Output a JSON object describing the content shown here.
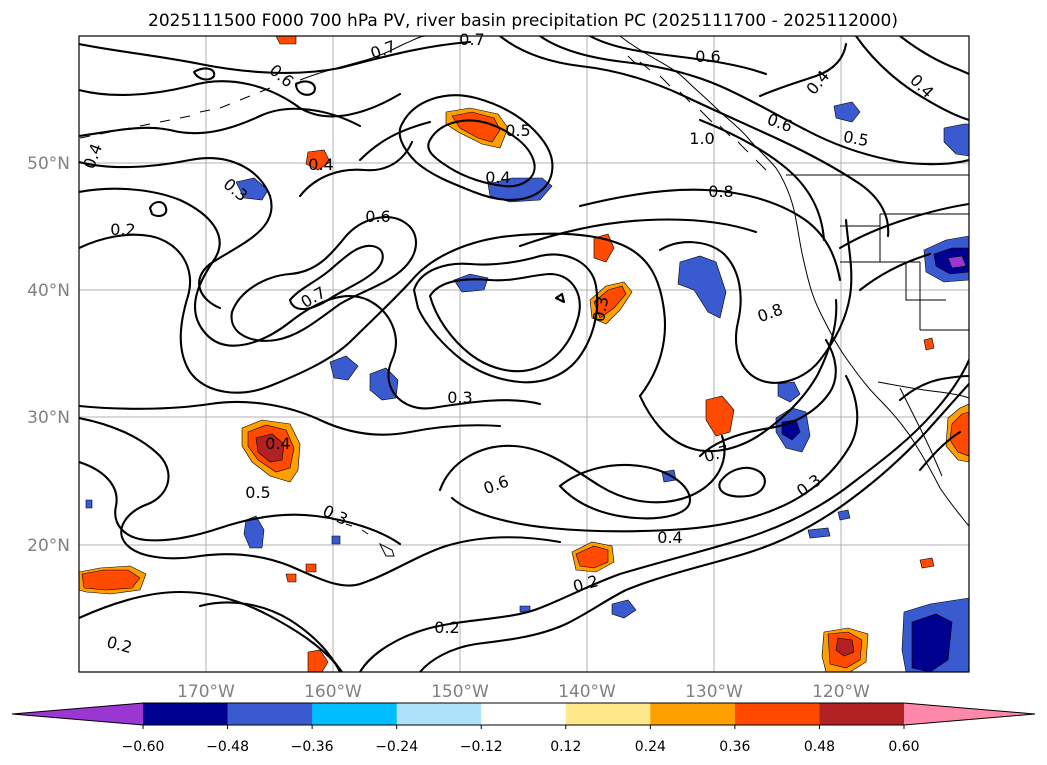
{
  "title": "2025111500 F000 700 hPa PV, river basin precipitation PC (2025111700 - 2025112000)",
  "map": {
    "lon_labels": [
      "170°W",
      "160°W",
      "150°W",
      "140°W",
      "130°W",
      "120°W"
    ],
    "lat_labels": [
      "50°N",
      "40°N",
      "30°N",
      "20°N"
    ],
    "contour_labels": [
      "0.7",
      "0.7",
      "0.6",
      "0.6",
      "0.4",
      "0.4",
      "0.5",
      "0.6",
      "0.5",
      "1.0",
      "0.4",
      "0.4",
      "0.3",
      "0.2",
      "0.6",
      "0.8",
      "0.4",
      "0.7",
      "0.3",
      "0.8",
      "0.3",
      "0.4",
      "0.5",
      "0.3",
      "0.6",
      "0.7",
      "0.3",
      "0.4",
      "0.2",
      "0.2",
      "0.2"
    ],
    "colors": {
      "contour": "#000000",
      "grid": "#b0b0b0",
      "coast": "#000000"
    }
  },
  "colorbar": {
    "tick_labels": [
      "−0.60",
      "−0.48",
      "−0.36",
      "−0.24",
      "−0.12",
      "0.12",
      "0.24",
      "0.36",
      "0.48",
      "0.60"
    ],
    "colors": [
      "#9a37d2",
      "#000090",
      "#3a5ad0",
      "#00bdff",
      "#aee3fb",
      "#ffffff",
      "#ffe98a",
      "#ffa000",
      "#ff4a00",
      "#b22222",
      "#ff88aa"
    ]
  }
}
